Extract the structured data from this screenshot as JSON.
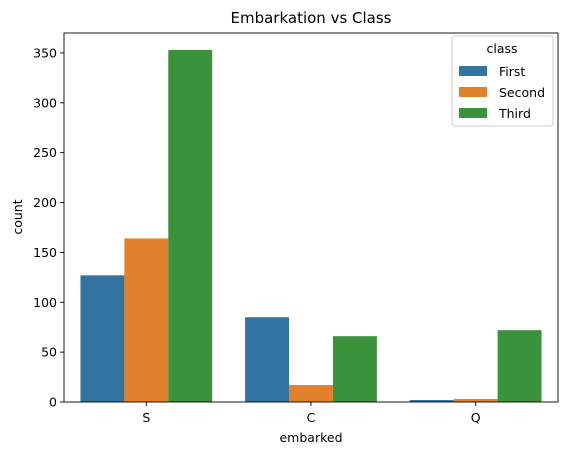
{
  "chart_data": {
    "type": "bar",
    "title": "Embarkation vs Class",
    "xlabel": "embarked",
    "ylabel": "count",
    "categories": [
      "S",
      "C",
      "Q"
    ],
    "series": [
      {
        "name": "First",
        "values": [
          127,
          85,
          2
        ],
        "color": "#3274a1"
      },
      {
        "name": "Second",
        "values": [
          164,
          17,
          3
        ],
        "color": "#e1812c"
      },
      {
        "name": "Third",
        "values": [
          353,
          66,
          72
        ],
        "color": "#3a923a"
      }
    ],
    "ylim": [
      0,
      370
    ],
    "yticks": [
      0,
      50,
      100,
      150,
      200,
      250,
      300,
      350
    ],
    "grid": false,
    "legend": {
      "title": "class",
      "placement": "top-right"
    }
  }
}
